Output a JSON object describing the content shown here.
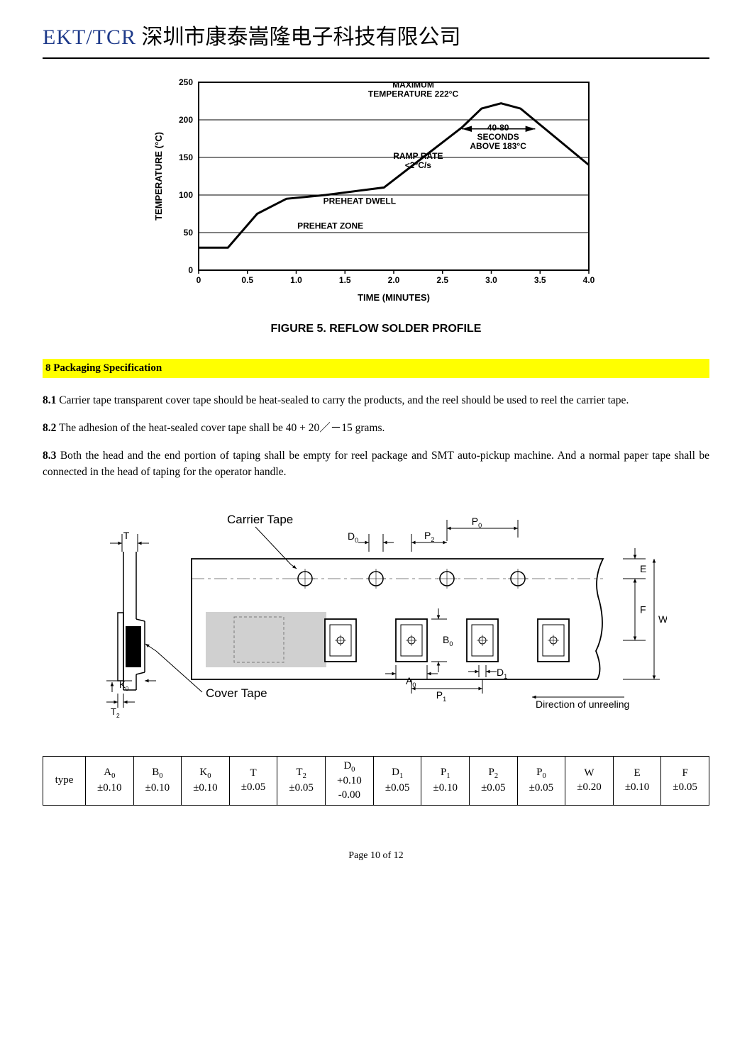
{
  "header": {
    "logo": "EKT/TCR",
    "cn": "深圳市康泰嵩隆电子科技有限公司"
  },
  "chart": {
    "caption": "FIGURE 5.  REFLOW SOLDER PROFILE",
    "xlabel": "TIME (MINUTES)",
    "ylabel": "TEMPERATURE (°C)",
    "ylim": [
      0,
      250
    ],
    "ytick_step": 50,
    "xlim": [
      0,
      4.0
    ],
    "xtick_step": 0.5,
    "yticks": [
      "0",
      "50",
      "100",
      "150",
      "200",
      "250"
    ],
    "xticks": [
      "0",
      "0.5",
      "1.0",
      "1.5",
      "2.0",
      "2.5",
      "3.0",
      "3.5",
      "4.0"
    ],
    "curve": [
      {
        "t": 0.0,
        "T": 30
      },
      {
        "t": 0.3,
        "T": 30
      },
      {
        "t": 0.6,
        "T": 75
      },
      {
        "t": 0.9,
        "T": 95
      },
      {
        "t": 1.3,
        "T": 100
      },
      {
        "t": 1.9,
        "T": 110
      },
      {
        "t": 2.3,
        "T": 150
      },
      {
        "t": 2.7,
        "T": 190
      },
      {
        "t": 2.9,
        "T": 215
      },
      {
        "t": 3.1,
        "T": 222
      },
      {
        "t": 3.3,
        "T": 215
      },
      {
        "t": 4.0,
        "T": 140
      }
    ],
    "line_color": "#000000",
    "line_width": 3,
    "grid_color": "#000000",
    "background_color": "#ffffff",
    "annotations": {
      "max_temp": "MAXIMUM\nTEMPERATURE 222°C",
      "seconds": "40-80\nSECONDS\nABOVE 183°C",
      "ramp": "RAMP RATE\n<2°C/s",
      "preheat_dwell": "PREHEAT DWELL",
      "preheat_zone": "PREHEAT ZONE"
    },
    "annotation_fontsize": 12,
    "label_fontsize": 13,
    "tick_fontsize": 12
  },
  "section": {
    "heading": "8 Packaging Specification",
    "p1a": "8.1",
    "p1b": " Carrier tape transparent cover tape should be heat-sealed to carry the products, and the reel should be used to reel the carrier tape.",
    "p2a": "8.2",
    "p2b": " The adhesion of the heat-sealed cover tape shall be 40 + 20／－15 grams.",
    "p3a": "8.3",
    "p3b": " Both the head and the end portion of taping shall be empty for reel package and SMT auto-pickup machine. And a normal paper tape shall be connected in the head of taping for the operator handle."
  },
  "diagram": {
    "labels": {
      "carrier": "Carrier Tape",
      "cover": "Cover Tape",
      "direction": "Direction of unreeling",
      "T": "T",
      "T2": "T",
      "T2sub": "2",
      "K0": "K",
      "K0sub": "0",
      "D0": "D",
      "D0sub": "0",
      "P0": "P",
      "P0sub": "0",
      "P2": "P",
      "P2sub": "2",
      "E": "E",
      "F": "F",
      "W": "W",
      "A0": "A",
      "A0sub": "0",
      "B0": "B",
      "B0sub": "0",
      "P1": "P",
      "P1sub": "1",
      "D1": "D",
      "D1sub": "1"
    },
    "colors": {
      "stroke": "#000000",
      "shade": "#b0b0b0",
      "fillshade": "#808080"
    }
  },
  "table": {
    "rowhead": "type",
    "cols": [
      {
        "h": "A",
        "sub": "0",
        "tol": "±0.10"
      },
      {
        "h": "B",
        "sub": "0",
        "tol": "±0.10"
      },
      {
        "h": "K",
        "sub": "0",
        "tol": "±0.10"
      },
      {
        "h": "T",
        "sub": "",
        "tol": "±0.05"
      },
      {
        "h": "T",
        "sub": "2",
        "tol": "±0.05"
      },
      {
        "h": "D",
        "sub": "0",
        "tol": "+0.10\n-0.00"
      },
      {
        "h": "D",
        "sub": "1",
        "tol": "±0.05"
      },
      {
        "h": "P",
        "sub": "1",
        "tol": "±0.10"
      },
      {
        "h": "P",
        "sub": "2",
        "tol": "±0.05"
      },
      {
        "h": "P",
        "sub": "0",
        "tol": "±0.05"
      },
      {
        "h": "W",
        "sub": "",
        "tol": "±0.20"
      },
      {
        "h": "E",
        "sub": "",
        "tol": "±0.10"
      },
      {
        "h": "F",
        "sub": "",
        "tol": "±0.05"
      }
    ]
  },
  "footer": {
    "page": "Page 10 of 12"
  }
}
